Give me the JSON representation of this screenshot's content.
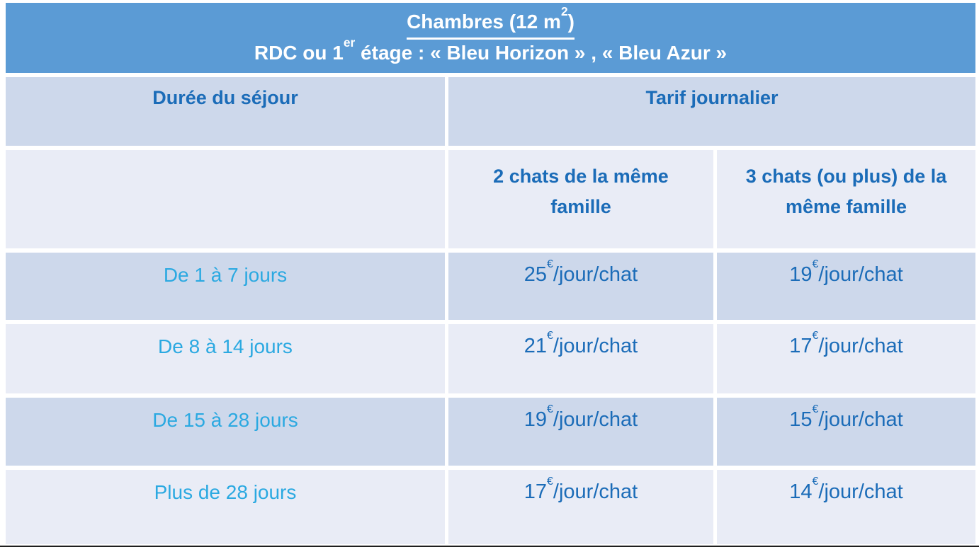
{
  "colors": {
    "header_bg": "#5b9bd5",
    "row_band_dark": "#cdd8eb",
    "row_band_light": "#e9ecf6",
    "gridline": "#ffffff",
    "header_text": "#ffffff",
    "dark_blue_text": "#1b6cb8",
    "cyan_text": "#2ba9e1"
  },
  "header": {
    "title_prefix": "Chambres (12 m",
    "title_sup": "2",
    "title_suffix": ")",
    "subtitle_prefix": "RDC ou 1",
    "subtitle_sup": "er",
    "subtitle_suffix": " étage : « Bleu Horizon » , « Bleu Azur »"
  },
  "columns": {
    "duration_header": "Durée du séjour",
    "tariff_header": "Tarif journalier",
    "sub_col_2_cats": "2 chats de la même famille",
    "sub_col_3_cats": "3 chats (ou plus) de la même famille"
  },
  "pricing": {
    "currency": "€",
    "per_unit": "/jour/chat"
  },
  "rows": [
    {
      "duration": "De 1 à 7 jours",
      "price_2_cats": "25",
      "price_3_cats": "19"
    },
    {
      "duration": "De 8 à 14 jours",
      "price_2_cats": "21",
      "price_3_cats": "17"
    },
    {
      "duration": "De 15 à 28 jours",
      "price_2_cats": "19",
      "price_3_cats": "15"
    },
    {
      "duration": "Plus de 28 jours",
      "price_2_cats": "17",
      "price_3_cats": "14"
    }
  ]
}
